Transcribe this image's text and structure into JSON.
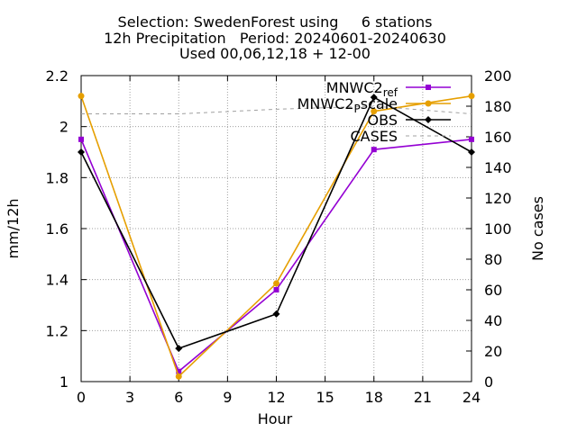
{
  "chart_data": {
    "type": "line",
    "title_lines": [
      "Selection: SwedenForest using     6 stations",
      "12h Precipitation   Period: 20240601-20240630",
      "Used 00,06,12,18 + 12-00"
    ],
    "xlabel": "Hour",
    "ylabel": "mm/12h",
    "y2label": "No cases",
    "xlim": [
      0,
      24
    ],
    "xticks": [
      0,
      3,
      6,
      9,
      12,
      15,
      18,
      21,
      24
    ],
    "ylim": [
      1,
      2.2
    ],
    "yticks": [
      "1",
      "1.2",
      "1.4",
      "1.6",
      "1.8",
      "2",
      "2.2"
    ],
    "y2lim": [
      0,
      200
    ],
    "y2ticks": [
      0,
      20,
      40,
      60,
      80,
      100,
      120,
      140,
      160,
      180,
      200
    ],
    "grid": true,
    "legend_position": "top-right",
    "series": [
      {
        "name": "MNWC2_ref",
        "legend_base": "MNWC2",
        "legend_sub": "ref",
        "axis": "y",
        "color": "#9400d3",
        "marker": "square",
        "x": [
          0,
          6,
          12,
          18,
          24
        ],
        "values": [
          1.95,
          1.04,
          1.36,
          1.91,
          1.95
        ]
      },
      {
        "name": "MNWC2_Pscale",
        "legend_base": "MNWC2",
        "legend_sub": "P",
        "legend_rest": "scale",
        "axis": "y",
        "color": "#e69f00",
        "marker": "circle",
        "x": [
          0,
          6,
          12,
          18,
          24
        ],
        "values": [
          2.12,
          1.02,
          1.385,
          2.06,
          2.12
        ]
      },
      {
        "name": "OBS",
        "legend_base": "OBS",
        "axis": "y",
        "color": "#000000",
        "marker": "diamond",
        "x": [
          0,
          6,
          12,
          18,
          24
        ],
        "values": [
          1.9,
          1.13,
          1.265,
          2.115,
          1.9
        ]
      },
      {
        "name": "CASES",
        "legend_base": "CASES",
        "axis": "y2",
        "color": "#a0a0a0",
        "dashed": true,
        "marker": "none",
        "x": [
          0,
          6,
          12,
          18,
          24
        ],
        "values": [
          175,
          175,
          178,
          180,
          175
        ]
      }
    ]
  }
}
